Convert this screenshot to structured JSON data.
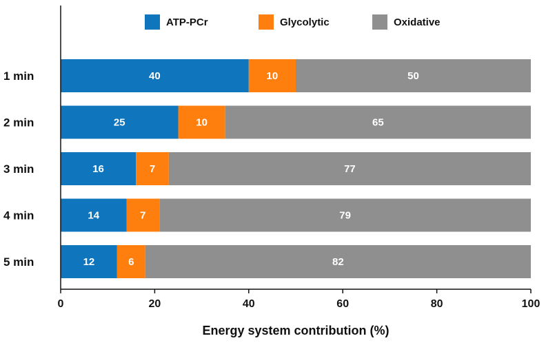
{
  "chart_data": {
    "type": "bar",
    "orientation": "horizontal",
    "stacked": true,
    "title": "",
    "xlabel": "Energy system contribution (%)",
    "ylabel": "",
    "xlim": [
      0,
      100
    ],
    "xticks": [
      0,
      20,
      40,
      60,
      80,
      100
    ],
    "grid": false,
    "legend_position": "top",
    "categories": [
      "1 min",
      "2 min",
      "3 min",
      "4 min",
      "5 min"
    ],
    "series": [
      {
        "name": "ATP-PCr",
        "color": "#0f75bd",
        "values": [
          40,
          25,
          16,
          14,
          12
        ]
      },
      {
        "name": "Glycolytic",
        "color": "#ff7f0e",
        "values": [
          10,
          10,
          7,
          7,
          6
        ]
      },
      {
        "name": "Oxidative",
        "color": "#8f8f8f",
        "values": [
          50,
          65,
          77,
          79,
          82
        ]
      }
    ]
  }
}
